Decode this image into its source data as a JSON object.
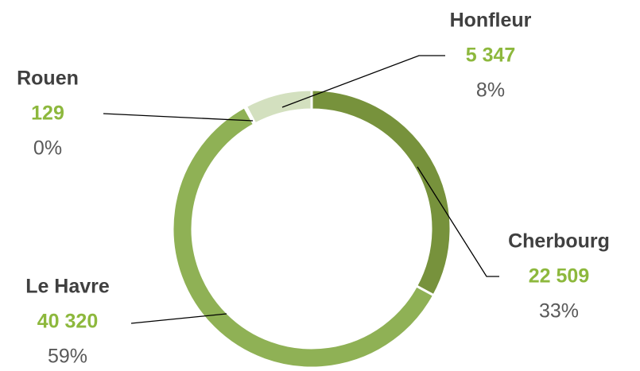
{
  "chart_data": {
    "type": "donut",
    "categories": [
      "Cherbourg",
      "Le Havre",
      "Rouen",
      "Honfleur"
    ],
    "values": [
      22509,
      40320,
      129,
      5347
    ],
    "value_labels": [
      "22 509",
      "40 320",
      "129",
      "5 347"
    ],
    "percent_labels": [
      "33%",
      "59%",
      "0%",
      "8%"
    ],
    "colors": [
      "#77923c",
      "#8fb155",
      "#a9c47f",
      "#d3e0bf"
    ]
  }
}
